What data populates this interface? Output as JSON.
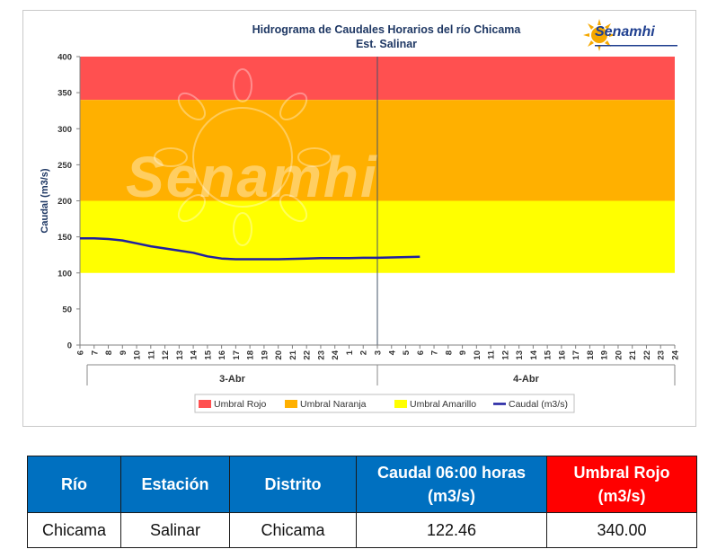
{
  "chart_data": {
    "type": "line",
    "title": "Hidrograma de Caudales Horarios del río Chicama",
    "subtitle": "Est. Salinar",
    "logo_text": "Senamhi",
    "watermark": "Senamhi",
    "ylabel": "Caudal  (m3/s)",
    "ylim": [
      0,
      400
    ],
    "yticks": [
      0,
      50,
      100,
      150,
      200,
      250,
      300,
      350,
      400
    ],
    "xtick_labels": [
      "6",
      "7",
      "8",
      "9",
      "10",
      "11",
      "12",
      "13",
      "14",
      "15",
      "16",
      "17",
      "18",
      "19",
      "20",
      "21",
      "22",
      "23",
      "24",
      "1",
      "2",
      "3",
      "4",
      "5",
      "6",
      "7",
      "8",
      "9",
      "10",
      "11",
      "12",
      "13",
      "14",
      "15",
      "16",
      "17",
      "18",
      "19",
      "20",
      "21",
      "22",
      "23",
      "24"
    ],
    "day_labels": [
      "3-Abr",
      "4-Abr"
    ],
    "bands": [
      {
        "name": "Umbral Rojo",
        "from": 340,
        "to": 400,
        "color": "#ff5050"
      },
      {
        "name": "Umbral Naranja",
        "from": 200,
        "to": 340,
        "color": "#ffb000"
      },
      {
        "name": "Umbral Amarillo",
        "from": 100,
        "to": 200,
        "color": "#ffff00"
      }
    ],
    "series": [
      {
        "name": "Caudal (m3/s)",
        "color": "#1f1fa0",
        "x": [
          0,
          1,
          2,
          3,
          4,
          5,
          6,
          7,
          8,
          9,
          10,
          11,
          12,
          13,
          14,
          15,
          16,
          17,
          18,
          19,
          20,
          21,
          22,
          23,
          24
        ],
        "y": [
          148,
          148,
          147,
          145,
          141,
          137,
          134,
          131,
          128,
          123,
          120,
          119,
          119,
          119,
          119,
          119.5,
          120,
          120.5,
          120.5,
          120.5,
          121,
          121,
          121.5,
          122,
          122.46
        ]
      }
    ],
    "legend": [
      {
        "label": "Umbral Rojo",
        "color": "#ff5050",
        "kind": "box"
      },
      {
        "label": "Umbral Naranja",
        "color": "#ffb000",
        "kind": "box"
      },
      {
        "label": "Umbral Amarillo",
        "color": "#ffff00",
        "kind": "box"
      },
      {
        "label": "Caudal (m3/s)",
        "color": "#1f1fa0",
        "kind": "line"
      }
    ],
    "legend_position": "bottom"
  },
  "table": {
    "headers": [
      "Río",
      "Estación",
      "Distrito",
      "Caudal  06:00 horas (m3/s)",
      "Umbral Rojo (m3/s)"
    ],
    "row": [
      "Chicama",
      "Salinar",
      "Chicama",
      "122.46",
      "340.00"
    ]
  }
}
